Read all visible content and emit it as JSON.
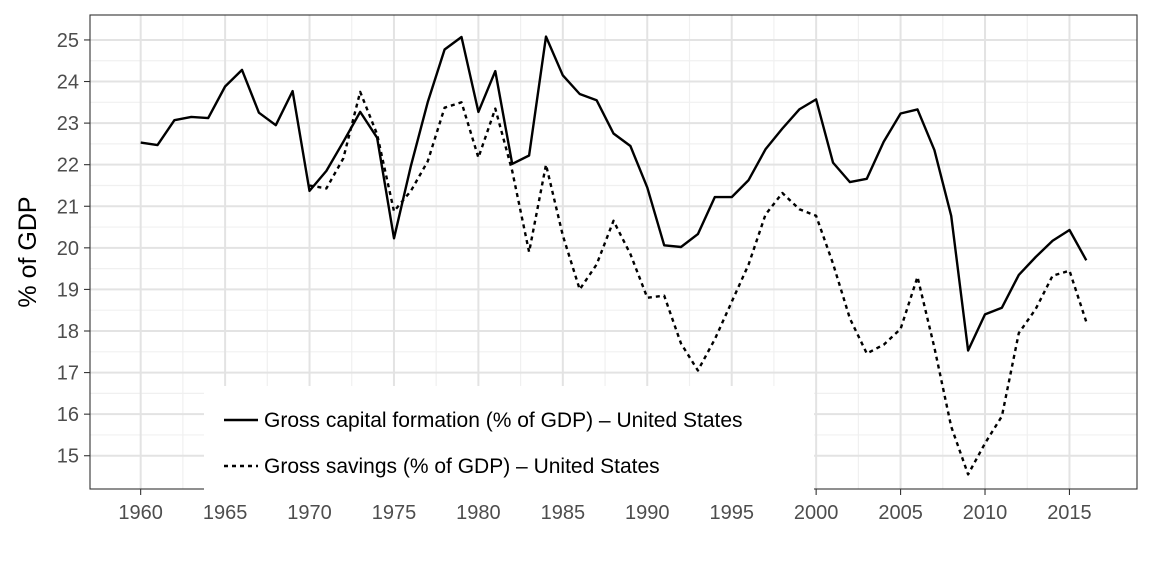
{
  "chart_data": {
    "type": "line",
    "title": "",
    "xlabel": "",
    "ylabel": "% of GDP",
    "xlim": [
      1957,
      2019
    ],
    "ylim": [
      14.2,
      25.6
    ],
    "x_ticks": [
      1960,
      1965,
      1970,
      1975,
      1980,
      1985,
      1990,
      1995,
      2000,
      2005,
      2010,
      2015
    ],
    "y_ticks": [
      15,
      16,
      17,
      18,
      19,
      20,
      21,
      22,
      23,
      24,
      25
    ],
    "grid": true,
    "legend_position": "bottom-left",
    "series": [
      {
        "name": "Gross capital formation (% of GDP) – United States",
        "style": "solid",
        "color": "#000000",
        "x": [
          1960,
          1961,
          1962,
          1963,
          1964,
          1965,
          1966,
          1967,
          1968,
          1969,
          1970,
          1971,
          1972,
          1973,
          1974,
          1975,
          1976,
          1977,
          1978,
          1979,
          1980,
          1981,
          1982,
          1983,
          1984,
          1985,
          1986,
          1987,
          1988,
          1989,
          1990,
          1991,
          1992,
          1993,
          1994,
          1995,
          1996,
          1997,
          1998,
          1999,
          2000,
          2001,
          2002,
          2003,
          2004,
          2005,
          2006,
          2007,
          2008,
          2009,
          2010,
          2011,
          2012,
          2013,
          2014,
          2015,
          2016
        ],
        "values": [
          22.53,
          22.47,
          23.07,
          23.15,
          23.12,
          23.88,
          24.28,
          23.25,
          22.95,
          23.77,
          21.37,
          21.85,
          22.55,
          23.27,
          22.65,
          20.23,
          21.97,
          23.5,
          24.77,
          25.07,
          23.27,
          24.25,
          22.02,
          22.22,
          25.08,
          24.15,
          23.7,
          23.55,
          22.75,
          22.45,
          21.45,
          20.06,
          20.02,
          20.33,
          21.22,
          21.22,
          21.63,
          22.37,
          22.87,
          23.33,
          23.57,
          22.05,
          21.58,
          21.66,
          22.55,
          23.23,
          23.33,
          22.35,
          20.77,
          17.53,
          18.4,
          18.56,
          19.35,
          19.78,
          20.17,
          20.43,
          19.7
        ]
      },
      {
        "name": "Gross savings (% of GDP) – United States",
        "style": "dashed",
        "color": "#000000",
        "x": [
          1970,
          1971,
          1972,
          1973,
          1974,
          1975,
          1976,
          1977,
          1978,
          1979,
          1980,
          1981,
          1982,
          1983,
          1984,
          1985,
          1986,
          1987,
          1988,
          1989,
          1990,
          1991,
          1992,
          1993,
          1994,
          1995,
          1996,
          1997,
          1998,
          1999,
          2000,
          2001,
          2002,
          2003,
          2004,
          2005,
          2006,
          2007,
          2008,
          2009,
          2010,
          2011,
          2012,
          2013,
          2014,
          2015,
          2016
        ],
        "values": [
          21.5,
          21.43,
          22.15,
          23.75,
          22.73,
          20.88,
          21.37,
          22.08,
          23.37,
          23.5,
          22.17,
          23.35,
          21.85,
          19.9,
          22.0,
          20.3,
          19.0,
          19.6,
          20.65,
          19.85,
          18.8,
          18.85,
          17.7,
          17.05,
          17.8,
          18.7,
          19.6,
          20.8,
          21.32,
          20.93,
          20.77,
          19.62,
          18.3,
          17.46,
          17.67,
          18.05,
          19.3,
          17.6,
          15.7,
          14.55,
          15.3,
          15.95,
          17.95,
          18.53,
          19.33,
          19.45,
          18.22
        ]
      }
    ]
  }
}
